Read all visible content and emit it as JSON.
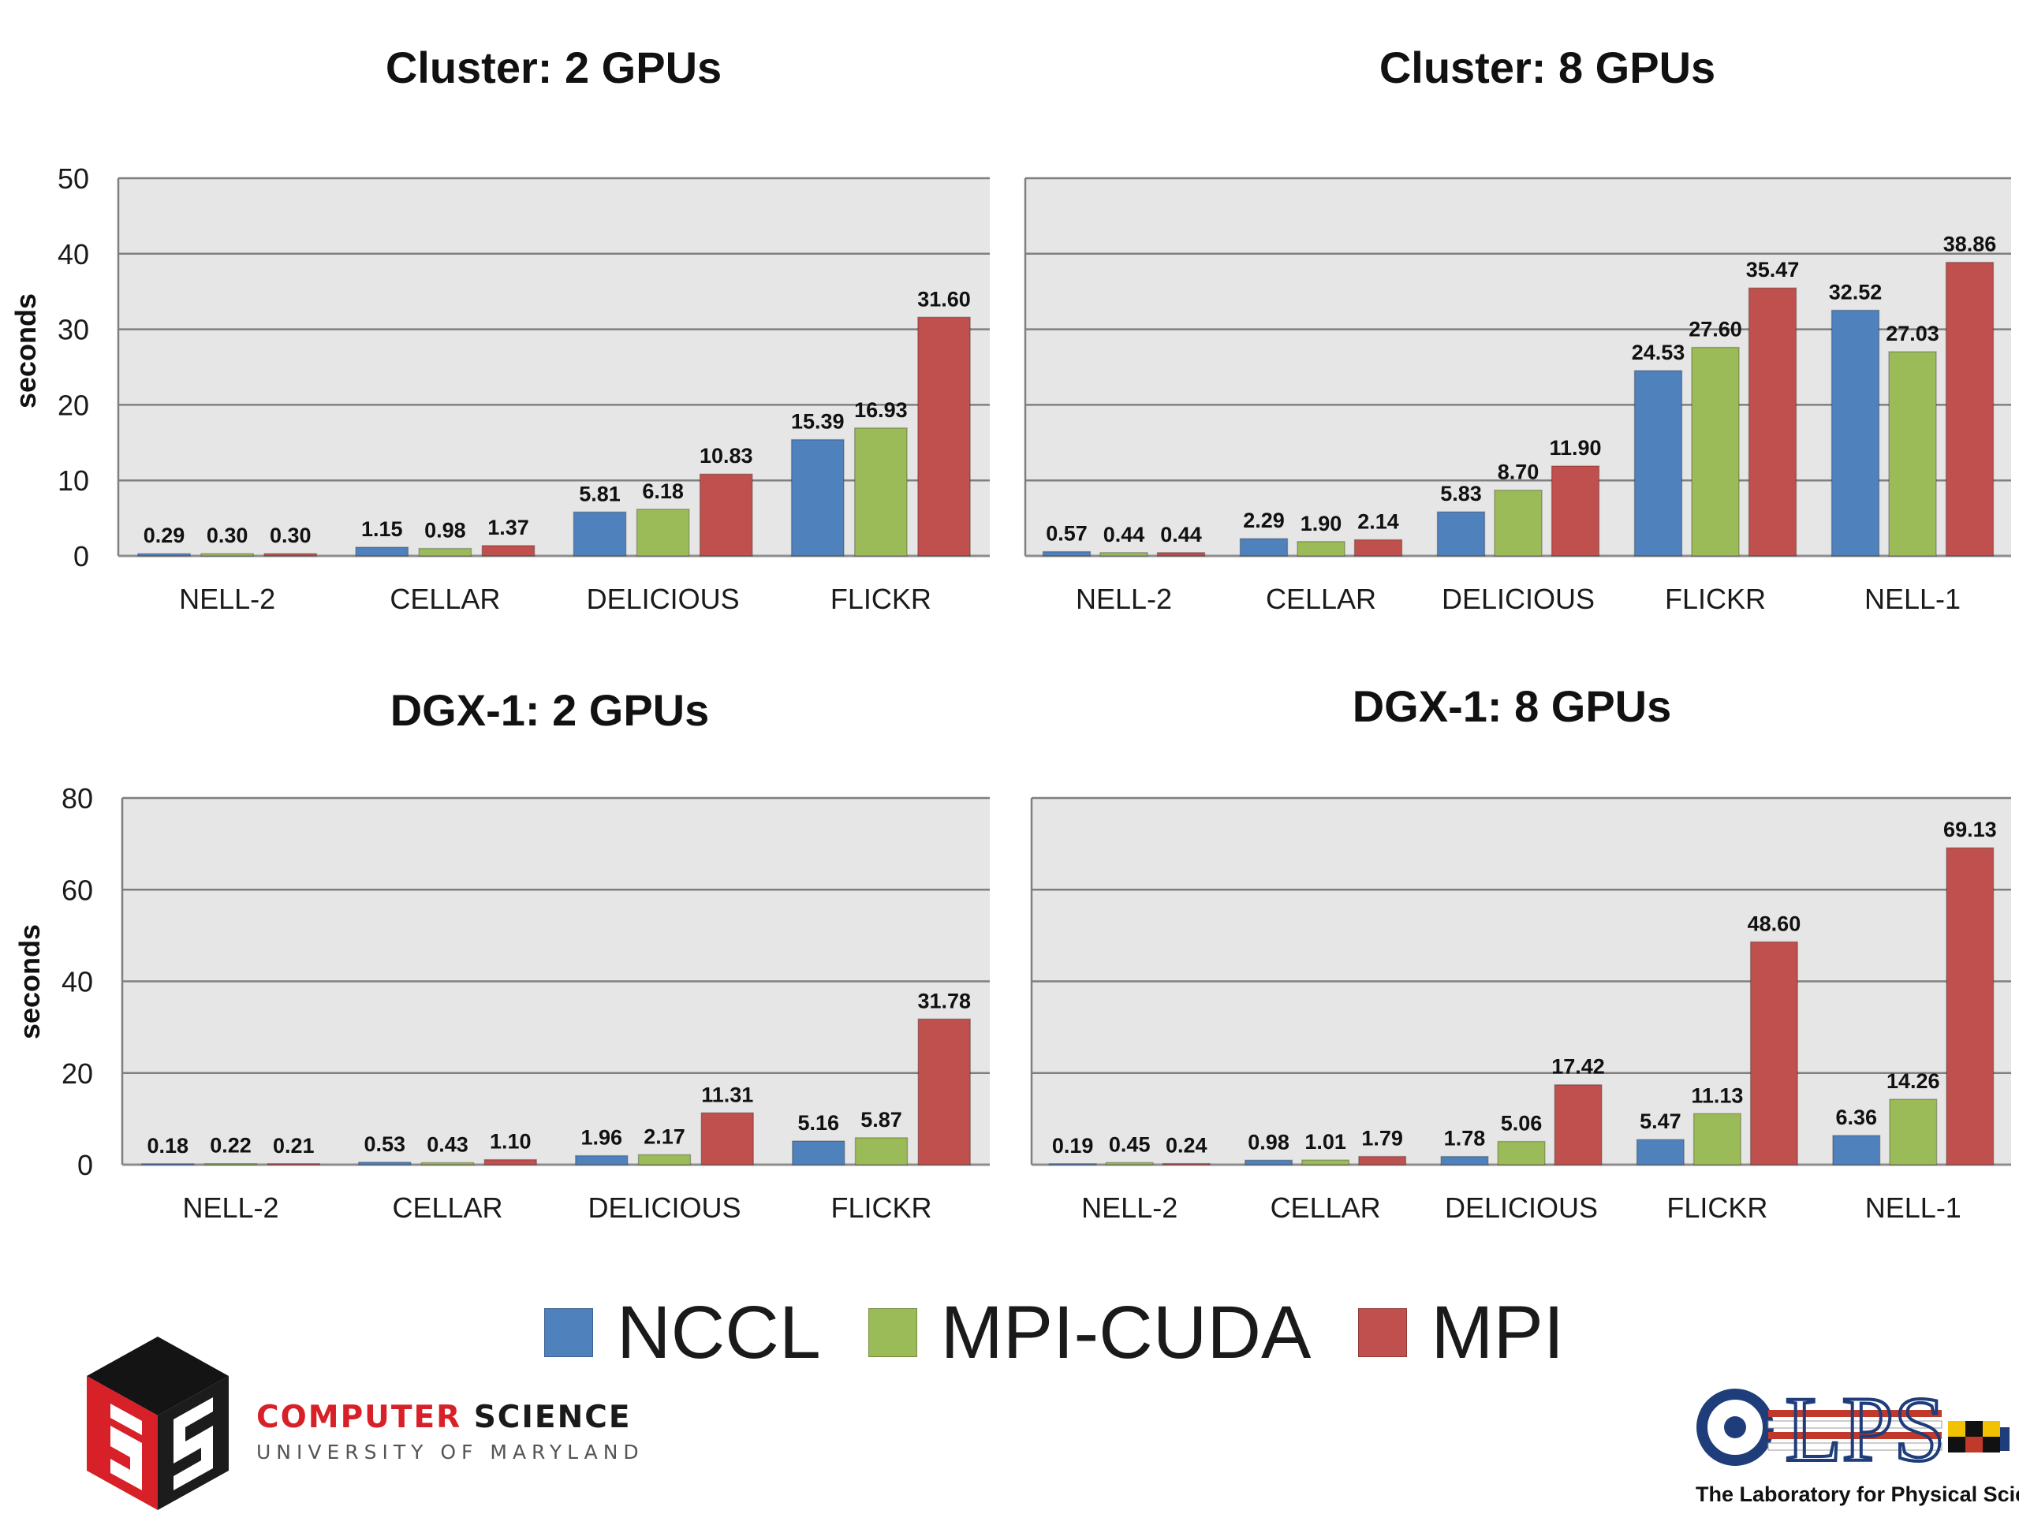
{
  "chart_data": [
    {
      "type": "bar",
      "title": "Cluster: 2 GPUs",
      "ylabel": "seconds",
      "ylim": [
        0,
        50
      ],
      "yticks": [
        0,
        10,
        20,
        30,
        40,
        50
      ],
      "grid": true,
      "categories": [
        "NELL-2",
        "CELLAR",
        "DELICIOUS",
        "FLICKR"
      ],
      "series": [
        {
          "name": "NCCL",
          "values": [
            0.29,
            1.15,
            5.81,
            15.39
          ],
          "labels": [
            "0.29",
            "1.15",
            "5.81",
            "15.39"
          ]
        },
        {
          "name": "MPI-CUDA",
          "values": [
            0.3,
            0.98,
            6.18,
            16.93
          ],
          "labels": [
            "0.30",
            "0.98",
            "6.18",
            "16.93"
          ]
        },
        {
          "name": "MPI",
          "values": [
            0.3,
            1.37,
            10.83,
            31.6
          ],
          "labels": [
            "0.30",
            "1.37",
            "10.83",
            "31.60"
          ]
        }
      ]
    },
    {
      "type": "bar",
      "title": "Cluster: 8 GPUs",
      "ylabel": "",
      "ylim": [
        0,
        50
      ],
      "yticks": [
        0,
        10,
        20,
        30,
        40,
        50
      ],
      "grid": true,
      "categories": [
        "NELL-2",
        "CELLAR",
        "DELICIOUS",
        "FLICKR",
        "NELL-1"
      ],
      "series": [
        {
          "name": "NCCL",
          "values": [
            0.57,
            2.29,
            5.83,
            24.53,
            32.52
          ],
          "labels": [
            "0.57",
            "2.29",
            "5.83",
            "24.53",
            "32.52"
          ]
        },
        {
          "name": "MPI-CUDA",
          "values": [
            0.44,
            1.9,
            8.7,
            27.6,
            27.03
          ],
          "labels": [
            "0.44",
            "1.90",
            "8.70",
            "27.60",
            "27.03"
          ]
        },
        {
          "name": "MPI",
          "values": [
            0.44,
            2.14,
            11.9,
            35.47,
            38.86
          ],
          "labels": [
            "0.44",
            "2.14",
            "11.90",
            "35.47",
            "38.86"
          ]
        }
      ]
    },
    {
      "type": "bar",
      "title": "DGX-1: 2 GPUs",
      "ylabel": "seconds",
      "ylim": [
        0,
        80
      ],
      "yticks": [
        0,
        20,
        40,
        60,
        80
      ],
      "grid": true,
      "categories": [
        "NELL-2",
        "CELLAR",
        "DELICIOUS",
        "FLICKR"
      ],
      "series": [
        {
          "name": "NCCL",
          "values": [
            0.18,
            0.53,
            1.96,
            5.16
          ],
          "labels": [
            "0.18",
            "0.53",
            "1.96",
            "5.16"
          ]
        },
        {
          "name": "MPI-CUDA",
          "values": [
            0.22,
            0.43,
            2.17,
            5.87
          ],
          "labels": [
            "0.22",
            "0.43",
            "2.17",
            "5.87"
          ]
        },
        {
          "name": "MPI",
          "values": [
            0.21,
            1.1,
            11.31,
            31.78
          ],
          "labels": [
            "0.21",
            "1.10",
            "11.31",
            "31.78"
          ]
        }
      ]
    },
    {
      "type": "bar",
      "title": "DGX-1: 8 GPUs",
      "ylabel": "",
      "ylim": [
        0,
        80
      ],
      "yticks": [
        0,
        20,
        40,
        60,
        80
      ],
      "grid": true,
      "categories": [
        "NELL-2",
        "CELLAR",
        "DELICIOUS",
        "FLICKR",
        "NELL-1"
      ],
      "series": [
        {
          "name": "NCCL",
          "values": [
            0.19,
            0.98,
            1.78,
            5.47,
            6.36
          ],
          "labels": [
            "0.19",
            "0.98",
            "1.78",
            "5.47",
            "6.36"
          ]
        },
        {
          "name": "MPI-CUDA",
          "values": [
            0.45,
            1.01,
            5.06,
            11.13,
            14.26
          ],
          "labels": [
            "0.45",
            "1.01",
            "5.06",
            "11.13",
            "14.26"
          ]
        },
        {
          "name": "MPI",
          "values": [
            0.24,
            1.79,
            17.42,
            48.6,
            69.13
          ],
          "labels": [
            "0.24",
            "1.79",
            "17.42",
            "48.60",
            "69.13"
          ]
        }
      ]
    }
  ],
  "legend": {
    "placement": "bottom-center",
    "items": [
      {
        "label": "NCCL",
        "color": "#4f81bd"
      },
      {
        "label": "MPI-CUDA",
        "color": "#9bbb59"
      },
      {
        "label": "MPI",
        "color": "#c0504d"
      }
    ]
  },
  "colors": {
    "series": [
      "#4f81bd",
      "#9bbb59",
      "#c0504d"
    ],
    "plot_background": "#e6e6e6",
    "gridline": "#7f7f7f",
    "cs_red": "#d72027"
  },
  "footer": {
    "cs_logo_icon": "umd-cs-cube-icon",
    "cs_word1": "COMPUTER",
    "cs_word2": "SCIENCE",
    "cs_subtitle": "UNIVERSITY OF MARYLAND",
    "lps_logo_icon": "lps-key-logo-icon",
    "lps_logo_text": "LPS",
    "lps_caption": "The Laboratory for Physical Sciences"
  }
}
